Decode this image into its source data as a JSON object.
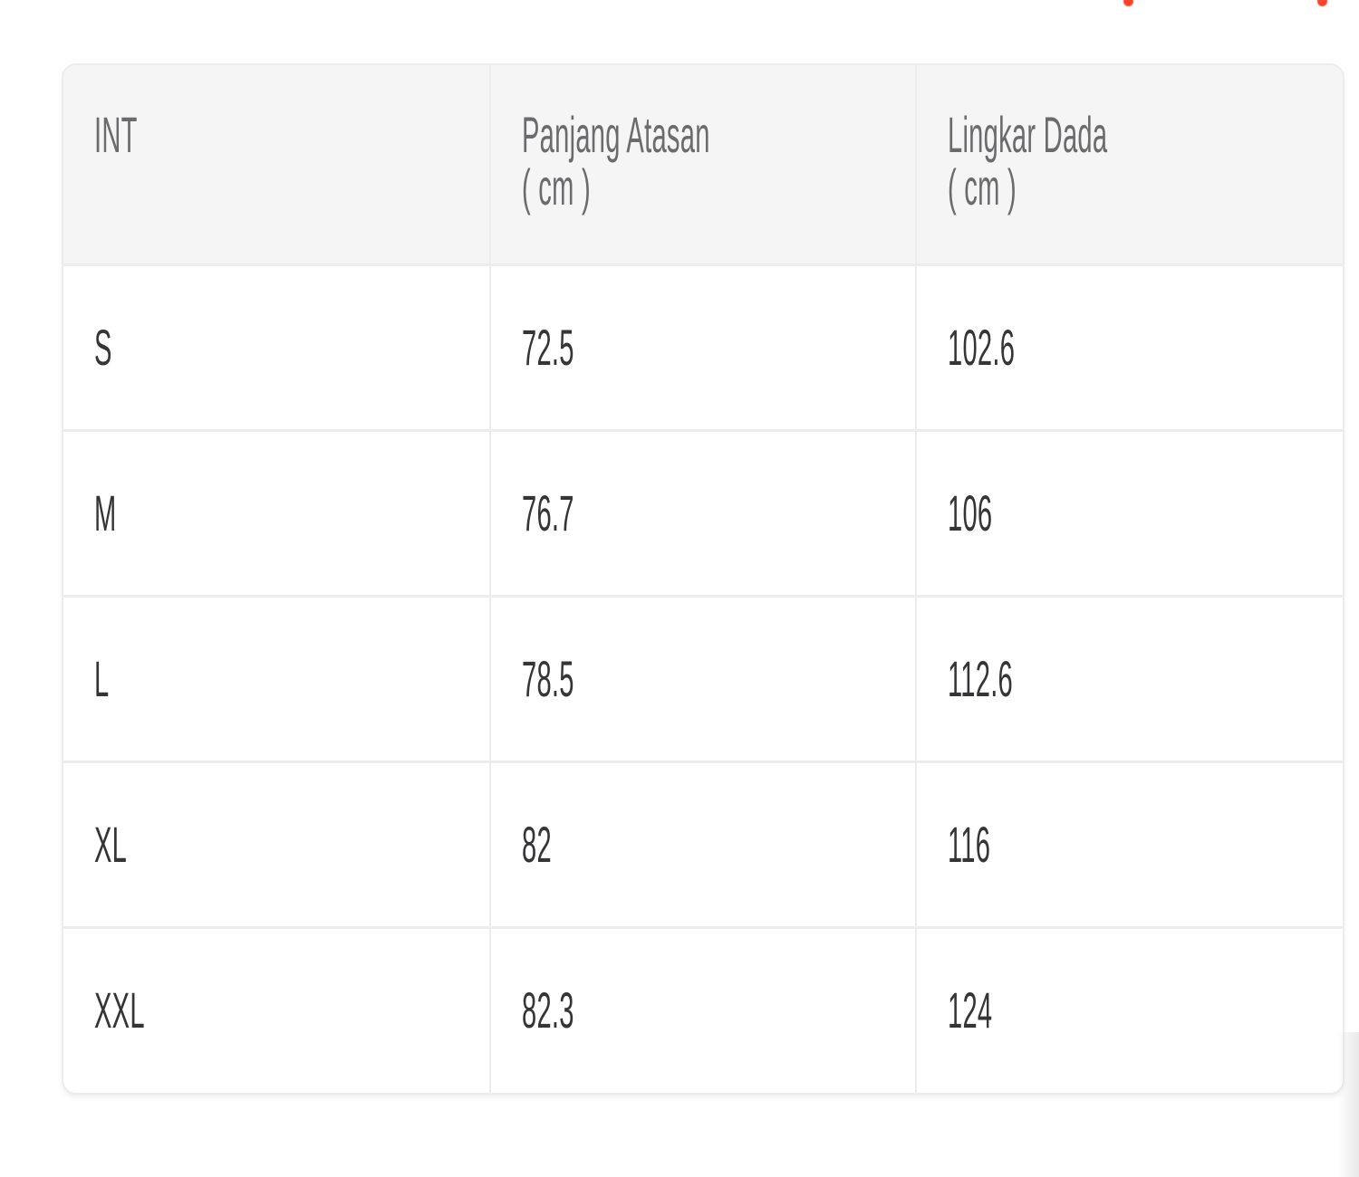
{
  "page": {
    "background": "#ffffff"
  },
  "colors": {
    "accent_red": "#f4432c",
    "header_background": "#f5f5f6",
    "border": "#ececec",
    "header_text": "#6b6b6d",
    "cell_text": "#353537"
  },
  "clipped_top_markers": {
    "description": "two tiny red fragments of text clipped at top edge",
    "color": "#f4432c"
  },
  "size_chart": {
    "columns": [
      {
        "label": "INT",
        "unit": ""
      },
      {
        "label": "Panjang Atasan",
        "unit": "( cm )"
      },
      {
        "label": "Lingkar Dada",
        "unit": "( cm )"
      }
    ],
    "rows": [
      {
        "size": "S",
        "panjang_atasan": "72.5",
        "lingkar_dada": "102.6"
      },
      {
        "size": "M",
        "panjang_atasan": "76.7",
        "lingkar_dada": "106"
      },
      {
        "size": "L",
        "panjang_atasan": "78.5",
        "lingkar_dada": "112.6"
      },
      {
        "size": "XL",
        "panjang_atasan": "82",
        "lingkar_dada": "116"
      },
      {
        "size": "XXL",
        "panjang_atasan": "82.3",
        "lingkar_dada": "124"
      }
    ]
  }
}
